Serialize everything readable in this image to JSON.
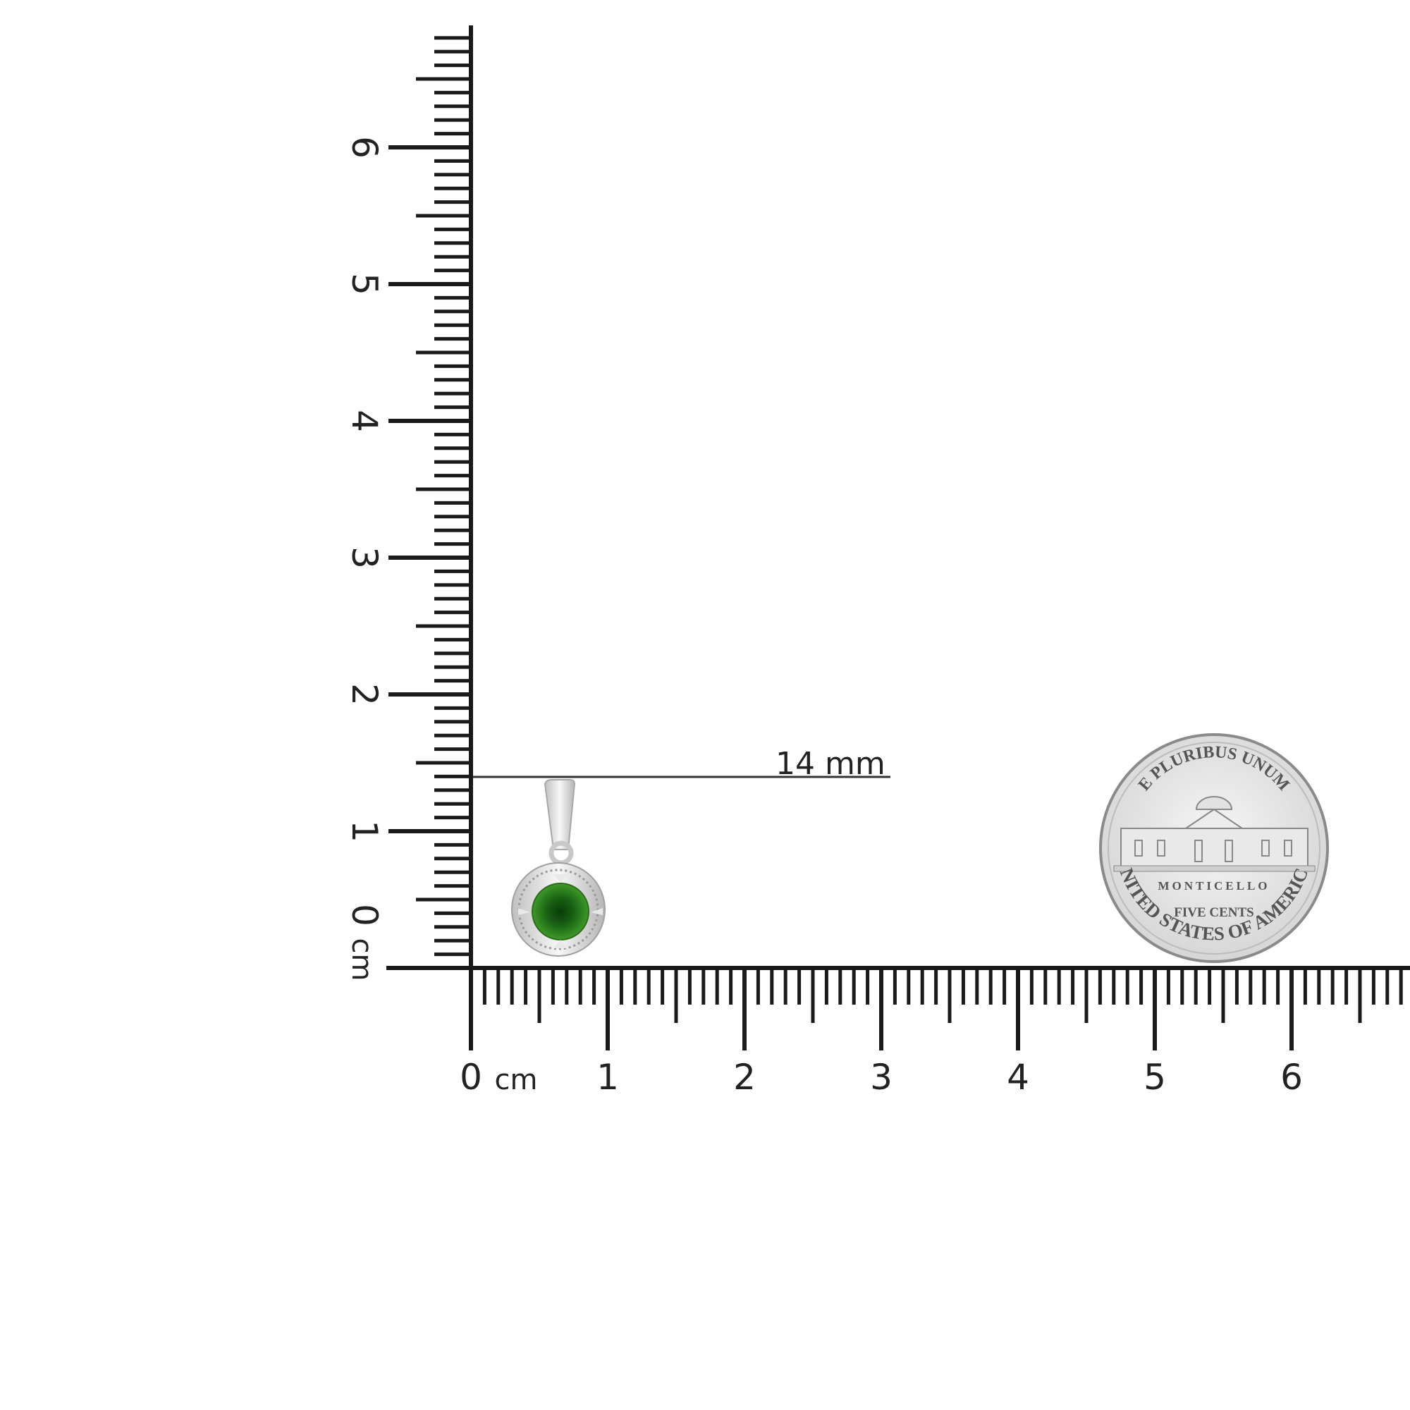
{
  "rulers": {
    "unit": "cm",
    "horizontal_labels": [
      "0",
      "1",
      "2",
      "3",
      "4",
      "5",
      "6"
    ],
    "vertical_labels": [
      "0",
      "1",
      "2",
      "3",
      "4",
      "5",
      "6"
    ],
    "max_mm": 68
  },
  "measurement": {
    "label": "14 mm",
    "value_mm": 14
  },
  "product": {
    "gem_color": "#2f8a1c",
    "metal_color": "#d9d9d9"
  },
  "coin": {
    "top_text": "E PLURIBUS UNUM",
    "building_text": "MONTICELLO",
    "value_text": "FIVE CENTS",
    "bottom_text": "UNITED STATES OF AMERICA"
  }
}
